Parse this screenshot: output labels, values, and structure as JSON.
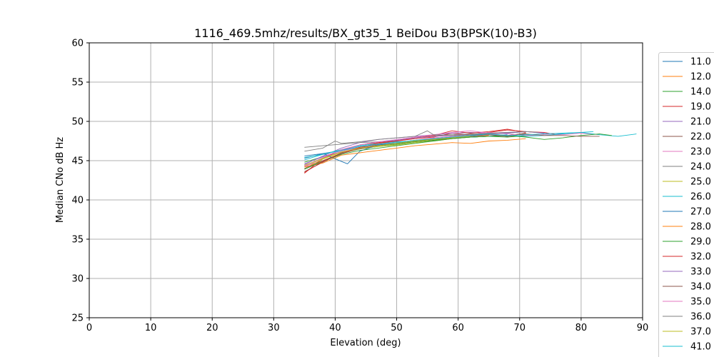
{
  "chart_data": {
    "type": "line",
    "title": "1116_469.5mhz/results/BX_gt35_1 BeiDou B3(BPSK(10)-B3)",
    "xlabel": "Elevation (deg)",
    "ylabel": "Median CNo dB Hz",
    "xlim": [
      0,
      90
    ],
    "ylim": [
      25,
      60
    ],
    "xticks": [
      "0",
      "10",
      "20",
      "30",
      "40",
      "50",
      "60",
      "70",
      "80",
      "90"
    ],
    "yticks": [
      "25",
      "30",
      "35",
      "40",
      "45",
      "50",
      "55",
      "60"
    ],
    "grid": true,
    "legend_position": "right (clipped)",
    "series": [
      {
        "name": "11.0",
        "color": "#1f77b4",
        "x": [
          35,
          38,
          41,
          44,
          47,
          50,
          53,
          56,
          59,
          62,
          65,
          68,
          71
        ],
        "y": [
          45.6,
          45.9,
          46.3,
          46.7,
          47.0,
          47.3,
          47.5,
          47.8,
          48.0,
          48.2,
          48.3,
          48.1,
          48.4
        ]
      },
      {
        "name": "12.0",
        "color": "#ff7f0e",
        "x": [
          35,
          38,
          41,
          44,
          47,
          50,
          53,
          56,
          59,
          62,
          65
        ],
        "y": [
          44.3,
          45.0,
          46.0,
          46.6,
          46.9,
          47.2,
          47.4,
          47.6,
          47.9,
          48.0,
          48.2
        ]
      },
      {
        "name": "14.0",
        "color": "#2ca02c",
        "x": [
          35,
          38,
          41,
          44,
          47,
          50,
          53,
          56,
          59,
          62,
          65,
          68,
          71,
          74
        ],
        "y": [
          44.8,
          45.5,
          46.1,
          46.5,
          46.8,
          47.1,
          47.4,
          47.6,
          47.8,
          48.0,
          48.1,
          48.0,
          48.2,
          48.3
        ]
      },
      {
        "name": "19.0",
        "color": "#d62728",
        "x": [
          35,
          38,
          41,
          44,
          47,
          50,
          53,
          56,
          59,
          62,
          65,
          68,
          71,
          74,
          76
        ],
        "y": [
          43.4,
          45.3,
          46.4,
          47.0,
          47.3,
          47.5,
          47.8,
          48.0,
          48.5,
          48.3,
          48.6,
          48.9,
          48.7,
          48.6,
          48.3
        ]
      },
      {
        "name": "21.0",
        "color": "#9467bd",
        "x": [
          35,
          38,
          41,
          44,
          47,
          50,
          53,
          56,
          59,
          62,
          65,
          68,
          71,
          74,
          77
        ],
        "y": [
          44.5,
          45.6,
          46.6,
          47.3,
          47.7,
          47.9,
          48.1,
          48.3,
          48.5,
          48.6,
          48.5,
          48.6,
          48.7,
          48.5,
          48.4
        ]
      },
      {
        "name": "22.0",
        "color": "#8c564b",
        "x": [
          35,
          38,
          41,
          44,
          47,
          50,
          53,
          56,
          59,
          62,
          65,
          68,
          71
        ],
        "y": [
          43.6,
          44.8,
          46.0,
          46.7,
          47.0,
          47.3,
          47.6,
          47.8,
          48.0,
          48.2,
          48.4,
          48.2,
          48.5
        ]
      },
      {
        "name": "23.0",
        "color": "#e377c2",
        "x": [
          35,
          38,
          41,
          44,
          47,
          50,
          53,
          56,
          59,
          62,
          65,
          68,
          71,
          74,
          77,
          80,
          83
        ],
        "y": [
          44.2,
          45.3,
          46.2,
          46.7,
          47.1,
          47.3,
          47.6,
          47.9,
          48.1,
          48.3,
          48.6,
          48.4,
          48.2,
          48.3,
          48.3,
          48.5,
          48.3
        ]
      },
      {
        "name": "24.0",
        "color": "#7f7f7f",
        "x": [
          35,
          38,
          41,
          44,
          47,
          50,
          53,
          56,
          59,
          62,
          65,
          68,
          71
        ],
        "y": [
          46.7,
          46.9,
          47.1,
          47.3,
          47.4,
          47.6,
          47.9,
          48.2,
          48.3,
          48.4,
          48.4,
          48.5,
          48.7
        ]
      },
      {
        "name": "25.0",
        "color": "#bcbd22",
        "x": [
          35,
          38,
          41,
          44,
          47,
          50,
          53,
          56,
          59,
          62,
          65,
          68
        ],
        "y": [
          44.0,
          45.2,
          46.1,
          46.5,
          46.8,
          47.0,
          47.3,
          47.5,
          47.8,
          48.0,
          48.1,
          48.2
        ]
      },
      {
        "name": "26.0",
        "color": "#17becf",
        "x": [
          35,
          38,
          41,
          44,
          47,
          50,
          53,
          56,
          59,
          62,
          65,
          68,
          71,
          74,
          77,
          80,
          83,
          86,
          89
        ],
        "y": [
          45.1,
          45.8,
          46.4,
          46.9,
          47.2,
          47.4,
          47.5,
          47.7,
          47.9,
          48.0,
          48.1,
          48.2,
          48.1,
          48.2,
          48.4,
          48.6,
          48.3,
          48.1,
          48.4
        ]
      },
      {
        "name": "27.0",
        "color": "#1f77b4",
        "x": [
          35,
          38,
          41,
          42,
          44,
          47,
          50,
          53,
          56,
          59,
          62,
          65,
          68
        ],
        "y": [
          45.3,
          45.9,
          44.9,
          44.6,
          46.2,
          47.0,
          47.2,
          47.5,
          47.7,
          47.9,
          48.0,
          48.1,
          48.3
        ]
      },
      {
        "name": "28.0",
        "color": "#ff7f0e",
        "x": [
          35,
          38,
          41,
          44,
          47,
          50,
          53,
          56,
          59,
          62,
          65,
          68,
          71
        ],
        "y": [
          44.2,
          44.7,
          45.7,
          46.0,
          46.3,
          46.6,
          46.9,
          47.1,
          47.3,
          47.2,
          47.5,
          47.6,
          47.8
        ]
      },
      {
        "name": "29.0",
        "color": "#2ca02c",
        "x": [
          35,
          38,
          41,
          44,
          47,
          50,
          53,
          56,
          59,
          62,
          65,
          68,
          71,
          74,
          77,
          80,
          83,
          85
        ],
        "y": [
          43.9,
          44.9,
          45.8,
          46.3,
          46.6,
          46.9,
          47.2,
          47.5,
          47.8,
          48.0,
          48.1,
          48.2,
          48.0,
          47.7,
          47.9,
          48.2,
          48.4,
          48.2
        ]
      },
      {
        "name": "32.0",
        "color": "#d62728",
        "x": [
          35,
          38,
          41,
          44,
          47,
          50,
          53,
          56,
          59,
          62,
          65,
          68,
          71
        ],
        "y": [
          43.5,
          44.9,
          45.9,
          46.7,
          47.2,
          47.5,
          47.9,
          48.2,
          48.8,
          48.5,
          48.7,
          49.0,
          48.6
        ]
      },
      {
        "name": "33.0",
        "color": "#9467bd",
        "x": [
          35,
          38,
          41,
          44,
          47,
          50,
          53,
          56,
          59,
          62,
          65,
          68,
          71,
          74
        ],
        "y": [
          44.6,
          45.5,
          46.3,
          47.0,
          47.4,
          47.6,
          47.9,
          48.1,
          48.2,
          48.3,
          48.4,
          48.5,
          48.7,
          48.5
        ]
      },
      {
        "name": "34.0",
        "color": "#8c564b",
        "x": [
          35,
          38,
          41,
          44,
          47,
          50,
          53,
          56,
          59,
          62,
          65,
          68,
          71,
          74,
          77,
          80,
          83
        ],
        "y": [
          44.0,
          45.0,
          45.9,
          46.5,
          46.9,
          47.2,
          47.5,
          47.7,
          47.9,
          48.1,
          48.3,
          48.1,
          48.4,
          48.2,
          48.2,
          48.1,
          48.1
        ]
      },
      {
        "name": "35.0",
        "color": "#e377c2",
        "x": [
          35,
          38,
          41,
          44,
          47,
          50,
          53,
          56,
          59,
          62,
          65,
          68
        ],
        "y": [
          44.3,
          45.4,
          46.4,
          47.0,
          47.4,
          47.7,
          48.0,
          48.3,
          48.6,
          48.8,
          48.5,
          48.6
        ]
      },
      {
        "name": "36.0",
        "color": "#7f7f7f",
        "x": [
          35,
          38,
          40,
          41,
          44,
          47,
          50,
          53,
          55,
          56,
          59,
          62,
          65,
          68,
          71,
          73
        ],
        "y": [
          46.2,
          46.6,
          47.5,
          47.2,
          47.4,
          47.7,
          47.9,
          48.1,
          48.8,
          48.3,
          48.2,
          48.3,
          48.5,
          48.6,
          48.7,
          48.6
        ]
      },
      {
        "name": "37.0",
        "color": "#bcbd22",
        "x": [
          35,
          38,
          41,
          44,
          47,
          50,
          53,
          56,
          59,
          62
        ],
        "y": [
          44.4,
          45.3,
          46.1,
          46.6,
          46.9,
          47.2,
          47.5,
          47.7,
          47.9,
          48.1
        ]
      },
      {
        "name": "41.0",
        "color": "#17becf",
        "x": [
          35,
          38,
          41,
          44,
          47,
          50,
          53,
          56,
          59,
          62,
          65,
          68,
          71,
          74,
          77,
          80,
          82
        ],
        "y": [
          45.4,
          45.8,
          46.3,
          46.8,
          47.1,
          47.3,
          47.6,
          47.8,
          48.0,
          48.2,
          48.4,
          48.2,
          48.3,
          48.4,
          48.5,
          48.6,
          48.7
        ]
      }
    ]
  }
}
